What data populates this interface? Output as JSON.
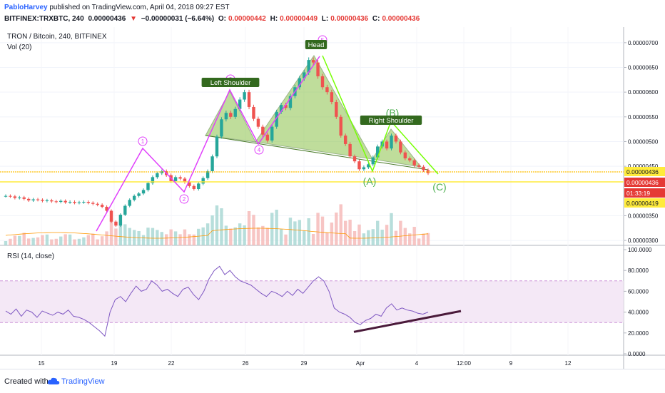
{
  "header": {
    "user": "PabloHarvey",
    "published": "published on TradingView.com, April 04, 2018 09:27 EST",
    "symbol": "BITFINEX:TRXBTC, 240",
    "last": "0.00000436",
    "change": "−0.00000031 (−6.64%)",
    "ohlc": {
      "o": "0.00000442",
      "h": "0.00000449",
      "l": "0.00000436",
      "c": "0.00000436"
    }
  },
  "chart_data": {
    "type": "candlestick",
    "title": "TRON / Bitcoin, 240, BITFINEX",
    "volume_label": "Vol (20)",
    "ylim": [
      2.9e-06,
      7.2e-06
    ],
    "y_ticks": [
      "0.00000700",
      "0.00000650",
      "0.00000600",
      "0.00000550",
      "0.00000500",
      "0.00000450",
      "0.00000350",
      "0.00000300"
    ],
    "price_badges": [
      {
        "text": "0.00000436",
        "color": "#ffeb3b",
        "fg": "#131722"
      },
      {
        "text": "0.00000436",
        "color": "#e53935",
        "fg": "#ffffff"
      },
      {
        "text": "01:33:19",
        "color": "#e53935",
        "fg": "#ffffff"
      },
      {
        "text": "0.00000419",
        "color": "#ffeb3b",
        "fg": "#131722"
      }
    ],
    "x_ticks": [
      "15",
      "19",
      "22",
      "26",
      "29",
      "Apr",
      "4",
      "12:00",
      "9",
      "12"
    ],
    "closes": [
      3.9e-06,
      3.89e-06,
      3.86e-06,
      3.87e-06,
      3.84e-06,
      3.81e-06,
      3.83e-06,
      3.82e-06,
      3.8e-06,
      3.81e-06,
      3.79e-06,
      3.78e-06,
      3.8e-06,
      3.77e-06,
      3.78e-06,
      3.76e-06,
      3.77e-06,
      3.78e-06,
      3.76e-06,
      3.74e-06,
      3.72e-06,
      3.68e-06,
      3.6e-06,
      3.38e-06,
      3.3e-06,
      3.52e-06,
      3.7e-06,
      3.82e-06,
      3.9e-06,
      3.95e-06,
      4.02e-06,
      4.16e-06,
      4.28e-06,
      4.36e-06,
      4.4e-06,
      4.32e-06,
      4.2e-06,
      4.28e-06,
      4.25e-06,
      4.18e-06,
      4.1e-06,
      4.04e-06,
      4.15e-06,
      4.26e-06,
      4.4e-06,
      4.7e-06,
      5.1e-06,
      5.45e-06,
      5.58e-06,
      5.5e-06,
      5.66e-06,
      5.85e-06,
      6e-06,
      5.7e-06,
      5.46e-06,
      5.3e-06,
      5.14e-06,
      5.02e-06,
      5.3e-06,
      5.6e-06,
      5.74e-06,
      5.68e-06,
      5.92e-06,
      6.1e-06,
      6.28e-06,
      6.4e-06,
      6.65e-06,
      6.6e-06,
      6.32e-06,
      6.1e-06,
      6e-06,
      5.8e-06,
      5.5e-06,
      5.12e-06,
      4.95e-06,
      4.7e-06,
      4.6e-06,
      4.44e-06,
      4.48e-06,
      4.54e-06,
      4.68e-06,
      4.9e-06,
      5e-06,
      4.86e-06,
      5.12e-06,
      5e-06,
      4.78e-06,
      4.66e-06,
      4.62e-06,
      4.52e-06,
      4.49e-06,
      4.42e-06,
      4.36e-06
    ],
    "pattern_labels": {
      "left_shoulder": "Left Shoulder",
      "head": "Head",
      "right_shoulder": "Right Shoulder"
    },
    "wave_labels": [
      "1",
      "2",
      "2",
      "4",
      "5"
    ],
    "abc_labels": [
      "(A)",
      "(B)",
      "(C)"
    ],
    "rsi": {
      "label": "RSI (14, close)",
      "ylim": [
        0,
        100
      ],
      "y_ticks": [
        "100.0000",
        "80.0000",
        "60.0000",
        "40.0000",
        "20.0000",
        "0.0000"
      ],
      "bands": [
        30,
        70
      ]
    }
  },
  "footer": {
    "created": "Created with",
    "brand": "TradingView"
  },
  "colors": {
    "up": "#26a69a",
    "down": "#ef5350",
    "pattern": "#8bc34a",
    "wave": "#e040fb",
    "abc": "#76ff03",
    "rsi": "#7e57c2"
  }
}
